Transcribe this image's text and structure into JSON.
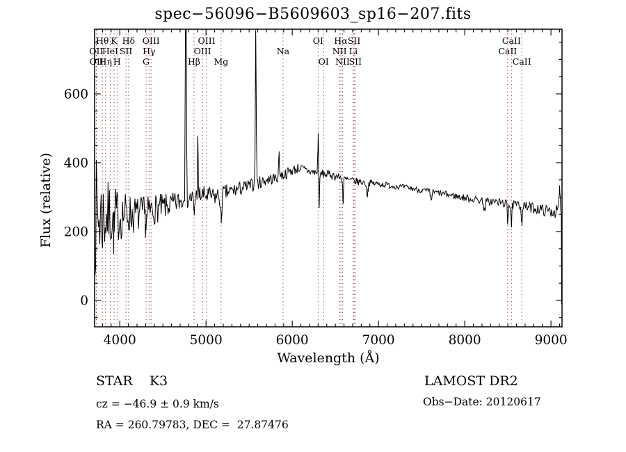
{
  "title": "spec−56096−B5609603_sp16−207.fits",
  "chart_data": {
    "type": "line",
    "title": "spec−56096−B5609603_sp16−207.fits",
    "xlabel": "Wavelength (Å)",
    "ylabel": "Flux (relative)",
    "xlim": [
      3708,
      9128
    ],
    "ylim": [
      -77,
      786
    ],
    "xticks": [
      4000,
      5000,
      6000,
      7000,
      8000,
      9000
    ],
    "yticks": [
      0,
      200,
      400,
      600
    ],
    "x_minor_step": 100,
    "y_minor_step": 50,
    "grid": false,
    "legend": "none",
    "line_color": "#000000",
    "marker_color": "#9b3333",
    "noise_seed": 7,
    "line_markers": [
      {
        "label": "OII",
        "wl": 3727,
        "row": 2
      },
      {
        "label": "OII",
        "wl": 3730,
        "row": 3
      },
      {
        "label": "Hθ",
        "wl": 3798,
        "row": 1
      },
      {
        "label": "Hη",
        "wl": 3835,
        "row": 3
      },
      {
        "label": "HeI",
        "wl": 3889,
        "row": 2
      },
      {
        "label": "K",
        "wl": 3934,
        "row": 1
      },
      {
        "label": "H",
        "wl": 3969,
        "row": 3
      },
      {
        "label": "SII",
        "wl": 4072,
        "row": 2
      },
      {
        "label": "Hδ",
        "wl": 4102,
        "row": 1
      },
      {
        "label": "G",
        "wl": 4305,
        "row": 3
      },
      {
        "label": "Hγ",
        "wl": 4340,
        "row": 2
      },
      {
        "label": "OIII",
        "wl": 4363,
        "row": 1
      },
      {
        "label": "Hβ",
        "wl": 4861,
        "row": 3
      },
      {
        "label": "OIII",
        "wl": 4959,
        "row": 2
      },
      {
        "label": "OIII",
        "wl": 5007,
        "row": 1
      },
      {
        "label": "Mg",
        "wl": 5175,
        "row": 3
      },
      {
        "label": "Na",
        "wl": 5893,
        "row": 2
      },
      {
        "label": "OI",
        "wl": 6300,
        "row": 1
      },
      {
        "label": "OI",
        "wl": 6363,
        "row": 3
      },
      {
        "label": "NII",
        "wl": 6548,
        "row": 2
      },
      {
        "label": "Hα",
        "wl": 6563,
        "row": 1
      },
      {
        "label": "NII",
        "wl": 6583,
        "row": 3
      },
      {
        "label": "Li",
        "wl": 6708,
        "row": 2
      },
      {
        "label": "SII",
        "wl": 6717,
        "row": 1
      },
      {
        "label": "SII",
        "wl": 6731,
        "row": 3
      },
      {
        "label": "CaII",
        "wl": 8498,
        "row": 2
      },
      {
        "label": "CaII",
        "wl": 8542,
        "row": 1
      },
      {
        "label": "CaII",
        "wl": 8662,
        "row": 3
      }
    ],
    "continuum": [
      [
        3710,
        245
      ],
      [
        3800,
        242
      ],
      [
        3900,
        246
      ],
      [
        4000,
        248
      ],
      [
        4100,
        250
      ],
      [
        4200,
        248
      ],
      [
        4300,
        255
      ],
      [
        4400,
        265
      ],
      [
        4500,
        270
      ],
      [
        4600,
        278
      ],
      [
        4700,
        288
      ],
      [
        4800,
        295
      ],
      [
        4900,
        305
      ],
      [
        5000,
        305
      ],
      [
        5100,
        300
      ],
      [
        5200,
        310
      ],
      [
        5300,
        318
      ],
      [
        5400,
        325
      ],
      [
        5500,
        332
      ],
      [
        5600,
        340
      ],
      [
        5700,
        350
      ],
      [
        5800,
        355
      ],
      [
        5900,
        365
      ],
      [
        6000,
        378
      ],
      [
        6080,
        385
      ],
      [
        6150,
        378
      ],
      [
        6250,
        372
      ],
      [
        6350,
        368
      ],
      [
        6450,
        365
      ],
      [
        6550,
        357
      ],
      [
        6650,
        350
      ],
      [
        6750,
        345
      ],
      [
        6850,
        342
      ],
      [
        6950,
        340
      ],
      [
        7050,
        337
      ],
      [
        7150,
        333
      ],
      [
        7250,
        330
      ],
      [
        7350,
        327
      ],
      [
        7450,
        322
      ],
      [
        7550,
        318
      ],
      [
        7650,
        314
      ],
      [
        7750,
        310
      ],
      [
        7850,
        305
      ],
      [
        7950,
        300
      ],
      [
        8050,
        296
      ],
      [
        8150,
        292
      ],
      [
        8250,
        288
      ],
      [
        8350,
        286
      ],
      [
        8450,
        283
      ],
      [
        8550,
        278
      ],
      [
        8650,
        275
      ],
      [
        8750,
        270
      ],
      [
        8850,
        266
      ],
      [
        8950,
        260
      ],
      [
        9050,
        258
      ],
      [
        9120,
        262
      ]
    ],
    "noise_sigma": [
      [
        3710,
        170
      ],
      [
        3760,
        150
      ],
      [
        3810,
        120
      ],
      [
        3860,
        100
      ],
      [
        3920,
        85
      ],
      [
        3980,
        75
      ],
      [
        4050,
        65
      ],
      [
        4150,
        55
      ],
      [
        4250,
        50
      ],
      [
        4350,
        45
      ],
      [
        4450,
        40
      ],
      [
        4600,
        32
      ],
      [
        4800,
        28
      ],
      [
        5000,
        26
      ],
      [
        5200,
        24
      ],
      [
        5400,
        20
      ],
      [
        5600,
        18
      ],
      [
        5800,
        16
      ],
      [
        6000,
        15
      ],
      [
        6200,
        13
      ],
      [
        6400,
        12
      ],
      [
        6600,
        11
      ],
      [
        6800,
        10
      ],
      [
        7000,
        9
      ],
      [
        7200,
        8
      ],
      [
        7400,
        8
      ],
      [
        7600,
        8
      ],
      [
        7800,
        9
      ],
      [
        8000,
        10
      ],
      [
        8200,
        11
      ],
      [
        8400,
        12
      ],
      [
        8600,
        13
      ],
      [
        8800,
        15
      ],
      [
        9000,
        17
      ],
      [
        9120,
        18
      ]
    ],
    "features": [
      {
        "wl": 4766,
        "amp": 900,
        "sig": 5
      },
      {
        "wl": 4905,
        "amp": 155,
        "sig": 4
      },
      {
        "wl": 5577,
        "amp": 440,
        "sig": 5
      },
      {
        "wl": 5847,
        "amp": 75,
        "sig": 4
      },
      {
        "wl": 6301,
        "amp": 115,
        "sig": 4
      },
      {
        "wl": 6313,
        "amp": -95,
        "sig": 4
      },
      {
        "wl": 6590,
        "amp": -75,
        "sig": 4
      },
      {
        "wl": 3934,
        "amp": -60,
        "sig": 6
      },
      {
        "wl": 4861,
        "amp": -55,
        "sig": 6
      },
      {
        "wl": 5175,
        "amp": -75,
        "sig": 8
      },
      {
        "wl": 4305,
        "amp": -35,
        "sig": 10
      },
      {
        "wl": 6870,
        "amp": -35,
        "sig": 8
      },
      {
        "wl": 7610,
        "amp": -25,
        "sig": 8
      },
      {
        "wl": 8230,
        "amp": -30,
        "sig": 8
      },
      {
        "wl": 8498,
        "amp": -55,
        "sig": 5
      },
      {
        "wl": 8542,
        "amp": -60,
        "sig": 5
      },
      {
        "wl": 8662,
        "amp": -50,
        "sig": 5
      },
      {
        "wl": 9100,
        "amp": 60,
        "sig": 6
      }
    ],
    "edge_drop": {
      "wl": 9124,
      "flux": -10
    }
  },
  "annotations": {
    "class_label": "STAR    K3",
    "cz": "cz = −46.9 ± 0.9 km/s",
    "radec": "RA = 260.79783, DEC =  27.87476",
    "survey": "LAMOST DR2",
    "obs_date": "Obs−Date: 20120617"
  }
}
